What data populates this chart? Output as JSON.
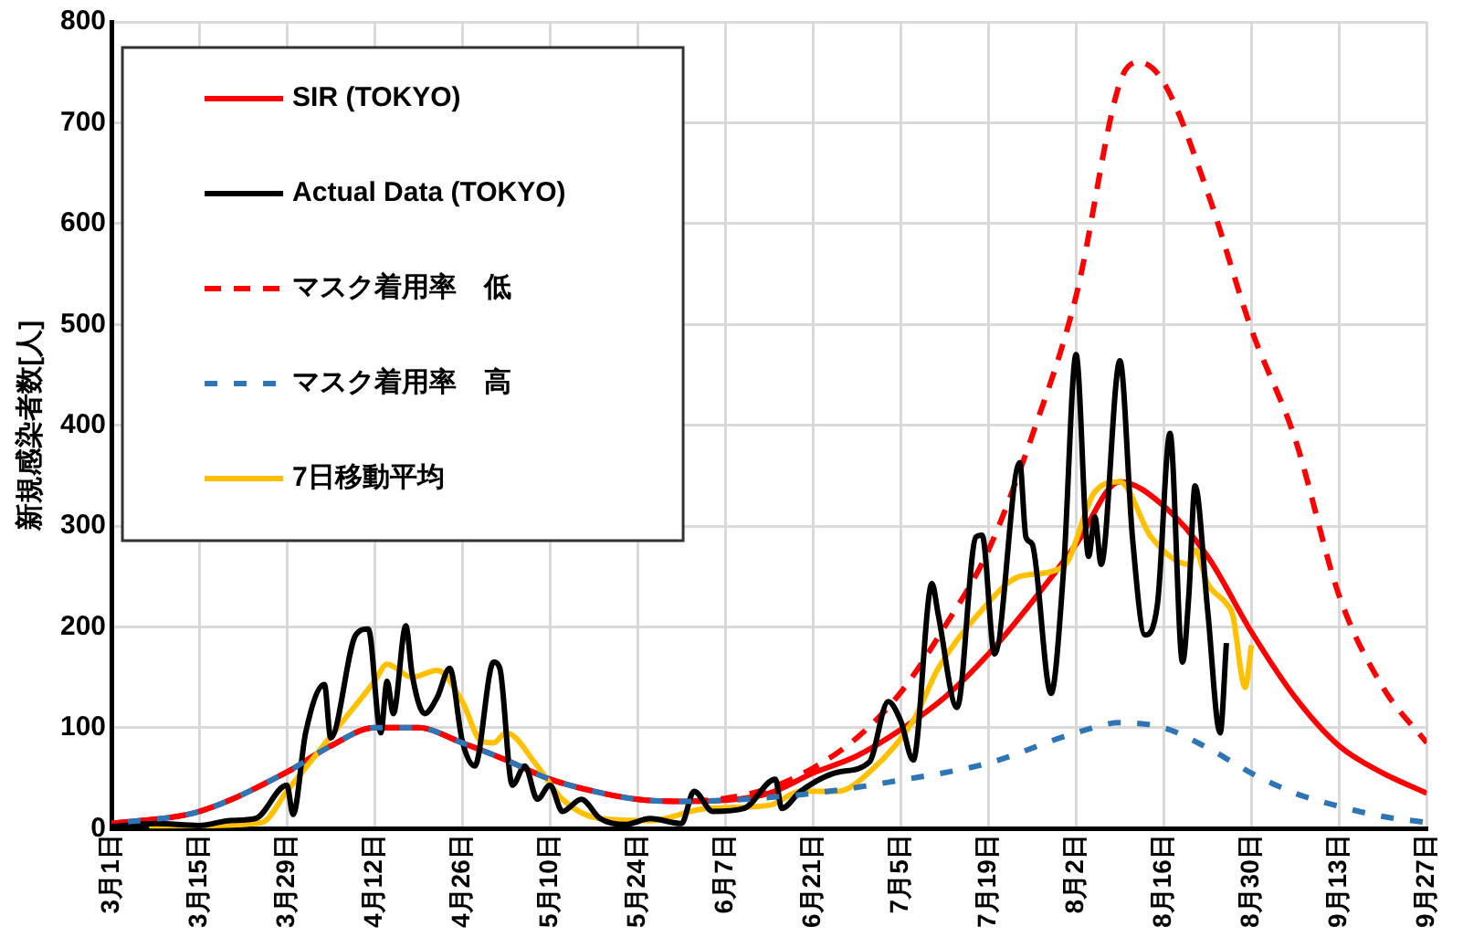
{
  "chart_data": {
    "type": "line",
    "ylabel": "新規感染者数[人]",
    "xlim": [
      "--03-01",
      "--09-27"
    ],
    "xticks": [
      {
        "value": "--03-01",
        "label": "3月1日"
      },
      {
        "value": "--03-15",
        "label": "3月15日"
      },
      {
        "value": "--03-29",
        "label": "3月29日"
      },
      {
        "value": "--04-12",
        "label": "4月12日"
      },
      {
        "value": "--04-26",
        "label": "4月26日"
      },
      {
        "value": "--05-10",
        "label": "5月10日"
      },
      {
        "value": "--05-24",
        "label": "5月24日"
      },
      {
        "value": "--06-07",
        "label": "6月7日"
      },
      {
        "value": "--06-21",
        "label": "6月21日"
      },
      {
        "value": "--07-05",
        "label": "7月5日"
      },
      {
        "value": "--07-19",
        "label": "7月19日"
      },
      {
        "value": "--08-02",
        "label": "8月2日"
      },
      {
        "value": "--08-16",
        "label": "8月16日"
      },
      {
        "value": "--08-30",
        "label": "8月30日"
      },
      {
        "value": "--09-13",
        "label": "9月13日"
      },
      {
        "value": "--09-27",
        "label": "9月27日"
      }
    ],
    "ylim": [
      0,
      800
    ],
    "yticks": [
      0,
      100,
      200,
      300,
      400,
      500,
      600,
      700,
      800
    ],
    "grid": true,
    "legend": "top left",
    "marker": "none",
    "series": [
      {
        "name": "SIR (TOKYO)",
        "color": "#ff0000",
        "line_style": "solid",
        "x": [
          "--03-01",
          "--03-15",
          "--03-29",
          "--04-05",
          "--04-12",
          "--04-19",
          "--04-26",
          "--05-03",
          "--05-10",
          "--05-17",
          "--05-24",
          "--05-31",
          "--06-07",
          "--06-14",
          "--06-21",
          "--06-28",
          "--07-05",
          "--07-12",
          "--07-19",
          "--07-26",
          "--08-02",
          "--08-09",
          "--08-16",
          "--08-23",
          "--08-30",
          "--09-06",
          "--09-13",
          "--09-20",
          "--09-27"
        ],
        "values": [
          5,
          17,
          56,
          82,
          100,
          100,
          85,
          68,
          49,
          37,
          29,
          27,
          28,
          35,
          55,
          72,
          98,
          130,
          173,
          225,
          282,
          344,
          320,
          270,
          195,
          130,
          82,
          55,
          35
        ]
      },
      {
        "name": "Actual Data (TOKYO)",
        "color": "#000000",
        "line_style": "solid",
        "x": [
          "--03-01",
          "--03-08",
          "--03-15",
          "--03-20",
          "--03-24",
          "--03-29",
          "--03-30",
          "--04-01",
          "--04-04",
          "--04-05",
          "--04-09",
          "--04-11",
          "--04-13",
          "--04-14",
          "--04-15",
          "--04-17",
          "--04-18",
          "--04-20",
          "--04-22",
          "--04-24",
          "--04-26",
          "--04-28",
          "--05-01",
          "--05-02",
          "--05-04",
          "--05-06",
          "--05-08",
          "--05-10",
          "--05-12",
          "--05-15",
          "--05-18",
          "--05-22",
          "--05-26",
          "--05-31",
          "--06-02",
          "--06-05",
          "--06-10",
          "--06-15",
          "--06-16",
          "--06-19",
          "--06-25",
          "--06-30",
          "--07-03",
          "--07-05",
          "--07-07",
          "--07-10",
          "--07-11",
          "--07-14",
          "--07-17",
          "--07-18",
          "--07-20",
          "--07-24",
          "--07-25",
          "--07-26",
          "--07-29",
          "--07-31",
          "--08-02",
          "--08-04",
          "--08-05",
          "--08-06",
          "--08-09",
          "--08-11",
          "--08-13",
          "--08-15",
          "--08-17",
          "--08-19",
          "--08-20",
          "--08-21",
          "--08-23",
          "--08-25",
          "--08-26"
        ],
        "values": [
          2,
          5,
          3,
          8,
          10,
          43,
          14,
          95,
          143,
          90,
          192,
          198,
          95,
          146,
          114,
          201,
          153,
          114,
          130,
          159,
          87,
          62,
          165,
          159,
          43,
          62,
          29,
          43,
          17,
          29,
          10,
          4,
          10,
          5,
          37,
          17,
          20,
          49,
          20,
          37,
          56,
          66,
          126,
          107,
          68,
          243,
          212,
          120,
          289,
          291,
          173,
          363,
          289,
          282,
          134,
          256,
          470,
          270,
          309,
          262,
          464,
          289,
          192,
          223,
          392,
          165,
          231,
          340,
          217,
          95,
          184
        ]
      },
      {
        "name": "マスク着用率　低",
        "color": "#ff0000",
        "line_style": "dashed",
        "x": [
          "--03-01",
          "--03-15",
          "--03-29",
          "--04-05",
          "--04-12",
          "--04-19",
          "--04-26",
          "--05-03",
          "--05-10",
          "--05-17",
          "--05-24",
          "--05-31",
          "--06-07",
          "--06-14",
          "--06-21",
          "--06-28",
          "--07-05",
          "--07-12",
          "--07-19",
          "--07-26",
          "--08-02",
          "--08-09",
          "--08-12",
          "--08-16",
          "--08-23",
          "--08-30",
          "--09-06",
          "--09-13",
          "--09-20",
          "--09-27"
        ],
        "values": [
          5,
          17,
          56,
          82,
          100,
          100,
          85,
          68,
          49,
          37,
          29,
          27,
          30,
          40,
          60,
          90,
          135,
          200,
          276,
          390,
          528,
          740,
          760,
          740,
          631,
          495,
          386,
          231,
          140,
          85
        ]
      },
      {
        "name": "マスク着用率　高",
        "color": "#2e75b6",
        "line_style": "dotted",
        "x": [
          "--03-01",
          "--03-15",
          "--03-29",
          "--04-05",
          "--04-12",
          "--04-19",
          "--04-26",
          "--05-03",
          "--05-10",
          "--05-17",
          "--05-24",
          "--05-31",
          "--06-07",
          "--06-21",
          "--07-05",
          "--07-19",
          "--08-02",
          "--08-09",
          "--08-16",
          "--08-23",
          "--08-30",
          "--09-06",
          "--09-13",
          "--09-20",
          "--09-27"
        ],
        "values": [
          5,
          17,
          56,
          82,
          100,
          100,
          85,
          68,
          49,
          37,
          29,
          27,
          28,
          35,
          48,
          65,
          95,
          105,
          100,
          80,
          55,
          35,
          22,
          12,
          6
        ]
      },
      {
        "name": "7日移動平均",
        "color": "#ffc000",
        "line_style": "solid",
        "x": [
          "--03-07",
          "--03-15",
          "--03-25",
          "--03-29",
          "--04-07",
          "--04-12",
          "--04-14",
          "--04-18",
          "--04-22",
          "--04-26",
          "--04-29",
          "--05-01",
          "--05-03",
          "--05-08",
          "--05-12",
          "--05-18",
          "--05-26",
          "--06-04",
          "--06-14",
          "--06-19",
          "--06-25",
          "--06-30",
          "--07-07",
          "--07-11",
          "--07-18",
          "--07-24",
          "--07-31",
          "--08-05",
          "--08-09",
          "--08-14",
          "--08-20",
          "--08-21",
          "--08-23",
          "--08-26",
          "--08-27",
          "--08-29",
          "--08-30"
        ],
        "values": [
          2,
          3,
          6,
          37,
          107,
          146,
          163,
          150,
          157,
          126,
          87,
          85,
          95,
          62,
          29,
          10,
          8,
          20,
          23,
          37,
          37,
          56,
          107,
          159,
          217,
          250,
          260,
          334,
          344,
          289,
          262,
          276,
          243,
          223,
          212,
          140,
          182
        ]
      }
    ]
  }
}
